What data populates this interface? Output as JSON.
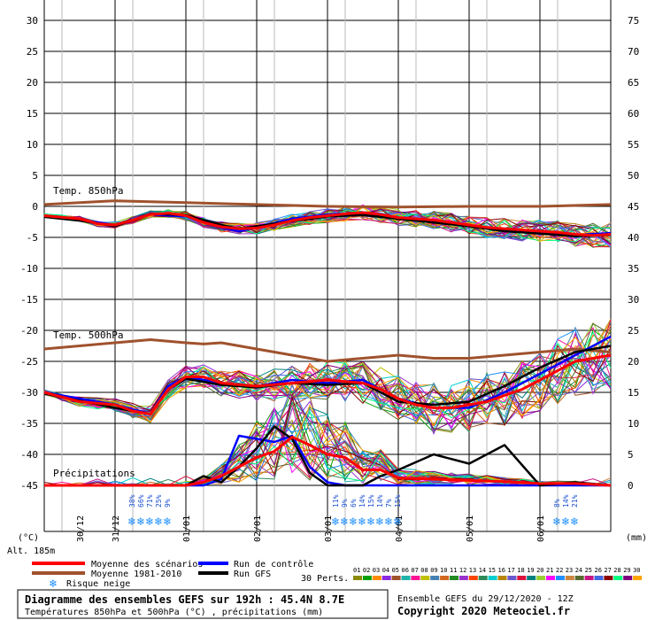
{
  "chart_data": {
    "type": "line",
    "title": "Diagramme des ensembles GEFS sur 192h : 45.4N 8.7E",
    "subtitle": "Températures 850hPa et 500hPa (°C) , précipitations (mm)",
    "run_info": "Ensemble GEFS du 29/12/2020 - 12Z",
    "copyright": "Copyright 2020 Meteociel.fr",
    "altitude": "Alt. 185m",
    "left_unit": "(°C)",
    "right_unit": "(mm)",
    "y_left_ticks": [
      "30",
      "25",
      "20",
      "15",
      "10",
      "5",
      "0",
      "-5",
      "-10",
      "-15",
      "-20",
      "-25",
      "-30",
      "-35",
      "-40",
      "-45"
    ],
    "y_left_range": [
      -45,
      30
    ],
    "y_right_ticks": [
      "75",
      "70",
      "65",
      "60",
      "55",
      "50",
      "45",
      "40",
      "35",
      "30",
      "25",
      "20",
      "15",
      "10",
      "5",
      "0"
    ],
    "y_right_range": [
      0,
      75
    ],
    "x_labels": [
      "30/12",
      "31/12",
      "01/01",
      "02/01",
      "03/01",
      "04/01",
      "05/01",
      "06/01"
    ],
    "x_range_hours": [
      0,
      192
    ],
    "section_labels": {
      "t850": "Temp. 850hPa",
      "t500": "Temp. 500hPa",
      "precip": "Précipitations"
    },
    "legend": {
      "mean": "Moyenne des scénarios",
      "clim": "Moyenne 1981-2010",
      "snow": "Risque neige",
      "control": "Run de contrôle",
      "gfs": "Run GFS",
      "perts": "30 Perts.",
      "pert_ids": [
        "01",
        "02",
        "03",
        "04",
        "05",
        "06",
        "07",
        "08",
        "09",
        "10",
        "11",
        "12",
        "13",
        "14",
        "15",
        "16",
        "17",
        "18",
        "19",
        "20",
        "21",
        "22",
        "23",
        "24",
        "25",
        "26",
        "27",
        "28",
        "29",
        "30"
      ]
    },
    "colors": {
      "mean": "#ff0000",
      "clim": "#a0522d",
      "control": "#0000ff",
      "gfs": "#000000",
      "snow": "#1e90ff",
      "perts": [
        "#8b8b00",
        "#00a000",
        "#ff8c00",
        "#8a2be2",
        "#a0522d",
        "#20b2aa",
        "#ff1493",
        "#c0c000",
        "#4682b4",
        "#d2691e",
        "#228b22",
        "#9932cc",
        "#ff4500",
        "#2e8b57",
        "#00ced1",
        "#b8860b",
        "#6a5acd",
        "#dc143c",
        "#008080",
        "#9acd32",
        "#ff00ff",
        "#1e90ff",
        "#cd853f",
        "#556b2f",
        "#c71585",
        "#4169e1",
        "#8b0000",
        "#00ff7f",
        "#800080",
        "#ffa500"
      ]
    },
    "snow_risk": [
      {
        "hour": 30,
        "pct": "38%"
      },
      {
        "hour": 33,
        "pct": "66%"
      },
      {
        "hour": 36,
        "pct": "71%"
      },
      {
        "hour": 39,
        "pct": "25%"
      },
      {
        "hour": 42,
        "pct": "9%"
      },
      {
        "hour": 99,
        "pct": "11%"
      },
      {
        "hour": 102,
        "pct": "9%"
      },
      {
        "hour": 105,
        "pct": "6%"
      },
      {
        "hour": 108,
        "pct": "14%"
      },
      {
        "hour": 111,
        "pct": "15%"
      },
      {
        "hour": 114,
        "pct": "14%"
      },
      {
        "hour": 117,
        "pct": "7%"
      },
      {
        "hour": 120,
        "pct": "15%"
      },
      {
        "hour": 174,
        "pct": "8%"
      },
      {
        "hour": 177,
        "pct": "14%"
      },
      {
        "hour": 180,
        "pct": "21%"
      }
    ],
    "series": [
      {
        "name": "Moyenne 1981-2010 (850hPa)",
        "axis": "left",
        "x": [
          0,
          24,
          48,
          72,
          96,
          120,
          144,
          168,
          192
        ],
        "values": [
          0.3,
          0.9,
          0.6,
          0.3,
          0.0,
          -0.1,
          0.0,
          0.0,
          0.3
        ]
      },
      {
        "name": "Moyenne des scénarios (850hPa)",
        "axis": "left",
        "x": [
          0,
          12,
          18,
          24,
          30,
          36,
          42,
          48,
          54,
          60,
          66,
          72,
          78,
          84,
          90,
          96,
          102,
          108,
          114,
          120,
          126,
          132,
          138,
          144,
          150,
          156,
          162,
          168,
          174,
          180,
          186,
          192
        ],
        "values": [
          -1.5,
          -2.0,
          -2.8,
          -3.0,
          -2.2,
          -1.3,
          -1.1,
          -1.5,
          -2.6,
          -3.3,
          -3.6,
          -3.5,
          -3.0,
          -2.3,
          -1.8,
          -1.5,
          -1.2,
          -1.0,
          -1.3,
          -1.8,
          -2.0,
          -2.2,
          -2.6,
          -3.0,
          -3.4,
          -3.6,
          -3.8,
          -4.0,
          -4.2,
          -4.5,
          -4.7,
          -4.5
        ]
      },
      {
        "name": "Run de contrôle (850hPa)",
        "axis": "left",
        "x": [
          0,
          12,
          24,
          36,
          48,
          60,
          66,
          72,
          84,
          96,
          108,
          120,
          132,
          144,
          156,
          168,
          180,
          192
        ],
        "values": [
          -1.6,
          -2.2,
          -3.0,
          -1.3,
          -1.6,
          -3.4,
          -4.0,
          -3.4,
          -2.0,
          -1.3,
          -1.0,
          -1.8,
          -2.4,
          -3.2,
          -3.8,
          -4.2,
          -4.6,
          -4.3
        ]
      },
      {
        "name": "Run GFS (850hPa)",
        "axis": "left",
        "x": [
          0,
          12,
          24,
          36,
          48,
          60,
          66,
          72,
          84,
          96,
          108,
          120,
          132,
          144,
          156,
          168,
          180,
          192
        ],
        "values": [
          -1.7,
          -2.3,
          -3.2,
          -1.2,
          -1.4,
          -3.0,
          -3.6,
          -3.2,
          -2.4,
          -1.6,
          -1.4,
          -2.0,
          -2.6,
          -3.2,
          -4.0,
          -4.4,
          -4.8,
          -4.6
        ]
      },
      {
        "name": "Moyenne 1981-2010 (500hPa)",
        "axis": "left",
        "x": [
          0,
          12,
          24,
          36,
          48,
          54,
          60,
          72,
          84,
          96,
          108,
          120,
          132,
          144,
          156,
          168,
          180,
          192
        ],
        "values": [
          -23.0,
          -22.5,
          -22.0,
          -21.5,
          -22.0,
          -22.2,
          -22.0,
          -23.0,
          -24.0,
          -25.0,
          -24.5,
          -24.0,
          -24.5,
          -24.5,
          -24.0,
          -23.5,
          -23.0,
          -23.5
        ]
      },
      {
        "name": "Moyenne des scénarios (500hPa)",
        "axis": "left",
        "x": [
          0,
          12,
          24,
          30,
          36,
          42,
          48,
          54,
          60,
          72,
          84,
          96,
          108,
          114,
          120,
          126,
          132,
          138,
          144,
          150,
          156,
          162,
          168,
          174,
          180,
          186,
          192
        ],
        "values": [
          -30.0,
          -31.5,
          -32.0,
          -33.0,
          -33.5,
          -29.5,
          -27.5,
          -27.5,
          -28.5,
          -29.0,
          -28.5,
          -28.0,
          -28.5,
          -29.5,
          -31.0,
          -32.0,
          -32.5,
          -32.5,
          -32.0,
          -31.5,
          -30.5,
          -29.5,
          -28.0,
          -26.5,
          -25.0,
          -24.5,
          -24.0
        ]
      },
      {
        "name": "Run de contrôle (500hPa)",
        "axis": "left",
        "x": [
          0,
          24,
          36,
          42,
          48,
          60,
          72,
          84,
          96,
          108,
          120,
          132,
          144,
          156,
          168,
          180,
          192
        ],
        "values": [
          -30.0,
          -32.0,
          -33.5,
          -29.0,
          -27.5,
          -28.5,
          -29.0,
          -28.0,
          -28.5,
          -28.0,
          -31.0,
          -32.5,
          -32.5,
          -30.0,
          -27.0,
          -24.0,
          -21.0
        ]
      },
      {
        "name": "Run GFS (500hPa)",
        "axis": "left",
        "x": [
          0,
          24,
          36,
          42,
          48,
          60,
          72,
          84,
          96,
          108,
          120,
          132,
          144,
          156,
          168,
          180,
          192
        ],
        "values": [
          -30.2,
          -32.5,
          -33.5,
          -29.5,
          -27.8,
          -28.8,
          -29.2,
          -28.5,
          -28.8,
          -28.5,
          -31.5,
          -32.0,
          -31.5,
          -29.0,
          -26.0,
          -23.5,
          -22.5
        ]
      },
      {
        "name": "Moyenne des scénarios (précipitations)",
        "axis": "right",
        "x": [
          0,
          48,
          54,
          60,
          66,
          72,
          78,
          84,
          90,
          96,
          102,
          108,
          114,
          120,
          132,
          144,
          156,
          168,
          180,
          192
        ],
        "values": [
          0,
          0,
          0.5,
          1.5,
          3.0,
          4.5,
          5.5,
          7.8,
          6.5,
          5.0,
          4.5,
          2.5,
          2.5,
          1.2,
          1.0,
          0.8,
          0.6,
          0.3,
          0.3,
          0
        ]
      },
      {
        "name": "Run de contrôle (précipitations)",
        "axis": "right",
        "x": [
          0,
          48,
          54,
          60,
          66,
          72,
          78,
          84,
          90,
          96,
          102,
          108,
          114,
          120,
          132,
          144,
          156,
          168,
          180,
          192
        ],
        "values": [
          0,
          0,
          0,
          1.0,
          8.0,
          7.5,
          7.0,
          8.0,
          3.0,
          0.5,
          0,
          0,
          0,
          0,
          0,
          0,
          0,
          0,
          0,
          0
        ]
      },
      {
        "name": "Run GFS (précipitations)",
        "axis": "right",
        "x": [
          0,
          48,
          54,
          60,
          66,
          72,
          78,
          84,
          90,
          96,
          102,
          108,
          114,
          120,
          132,
          144,
          156,
          168,
          180,
          192
        ],
        "values": [
          0,
          0,
          1.5,
          0.5,
          3.0,
          6.0,
          9.5,
          7.5,
          2.0,
          0,
          0,
          0,
          1.5,
          2.5,
          5.0,
          3.5,
          6.5,
          0,
          0.5,
          0
        ]
      }
    ]
  }
}
